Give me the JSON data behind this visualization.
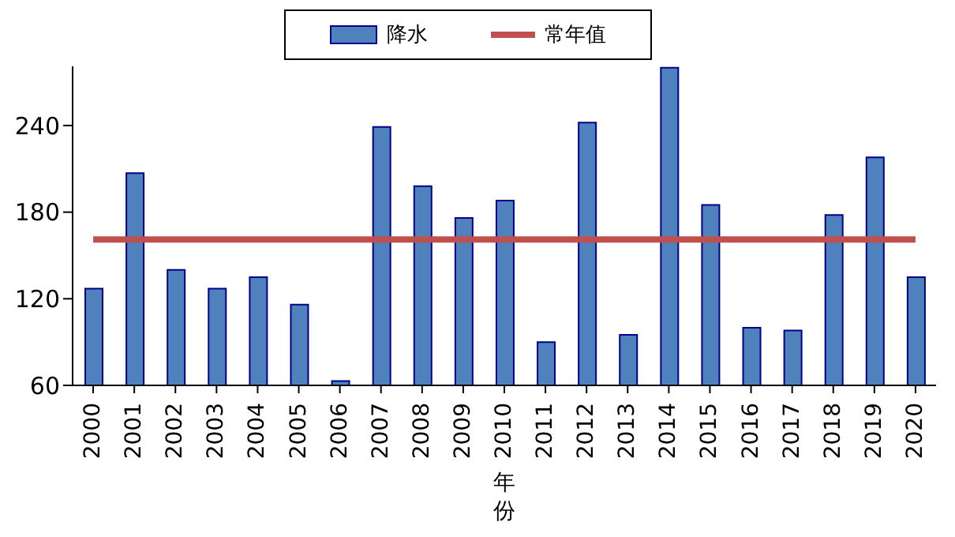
{
  "chart_data": {
    "type": "bar",
    "xlabel": "年份",
    "categories": [
      "2000",
      "2001",
      "2002",
      "2003",
      "2004",
      "2005",
      "2006",
      "2007",
      "2008",
      "2009",
      "2010",
      "2011",
      "2012",
      "2013",
      "2014",
      "2015",
      "2016",
      "2017",
      "2018",
      "2019",
      "2020"
    ],
    "series": [
      {
        "name": "降水",
        "color": "#4f81bd",
        "values": [
          127,
          207,
          140,
          127,
          135,
          116,
          63,
          239,
          198,
          176,
          188,
          90,
          242,
          95,
          280,
          185,
          100,
          98,
          178,
          218,
          135
        ]
      },
      {
        "name": "常年值",
        "type": "line",
        "color": "#c0504d",
        "values": [
          161,
          161,
          161,
          161,
          161,
          161,
          161,
          161,
          161,
          161,
          161,
          161,
          161,
          161,
          161,
          161,
          161,
          161,
          161,
          161,
          161
        ]
      }
    ],
    "ylim": [
      60,
      281
    ],
    "yticks": [
      60,
      120,
      180,
      240
    ],
    "grid": false,
    "legend": "top"
  }
}
